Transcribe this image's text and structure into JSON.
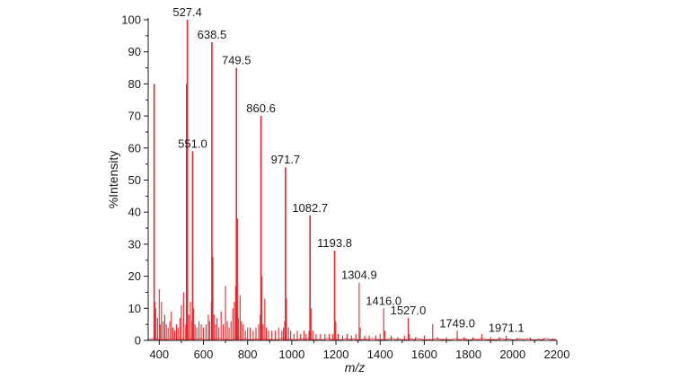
{
  "chart_data": {
    "type": "bar",
    "subtype": "mass-spectrum",
    "title": "",
    "xlabel": "m/z",
    "ylabel": "%Intensity",
    "xlim": [
      350,
      2200
    ],
    "ylim": [
      0,
      100
    ],
    "xticks": [
      400,
      600,
      800,
      1000,
      1200,
      1400,
      1600,
      1800,
      2000,
      2200
    ],
    "yticks": [
      0,
      10,
      20,
      30,
      40,
      50,
      60,
      70,
      80,
      90,
      100
    ],
    "grid": false,
    "color": "#e8262b",
    "labeled_peaks": [
      {
        "label": "527.4",
        "x": 527.4,
        "y": 100
      },
      {
        "label": "551.0",
        "x": 551.0,
        "y": 59
      },
      {
        "label": "638.5",
        "x": 638.5,
        "y": 93
      },
      {
        "label": "749.5",
        "x": 749.5,
        "y": 85
      },
      {
        "label": "860.6",
        "x": 860.6,
        "y": 70
      },
      {
        "label": "971.7",
        "x": 971.7,
        "y": 54
      },
      {
        "label": "1082.7",
        "x": 1082.7,
        "y": 39
      },
      {
        "label": "1193.8",
        "x": 1193.8,
        "y": 28
      },
      {
        "label": "1304.9",
        "x": 1304.9,
        "y": 18
      },
      {
        "label": "1416.0",
        "x": 1416.0,
        "y": 10
      },
      {
        "label": "1527.0",
        "x": 1527.0,
        "y": 7
      },
      {
        "label": "1749.0",
        "x": 1749.0,
        "y": 3
      },
      {
        "label": "1971.1",
        "x": 1971.1,
        "y": 1.5
      }
    ],
    "peaks": [
      [
        377,
        80
      ],
      [
        380,
        12
      ],
      [
        384,
        10
      ],
      [
        392,
        7
      ],
      [
        400,
        16
      ],
      [
        404,
        5
      ],
      [
        410,
        12
      ],
      [
        418,
        6
      ],
      [
        425,
        8
      ],
      [
        432,
        5
      ],
      [
        440,
        4
      ],
      [
        448,
        6
      ],
      [
        455,
        9
      ],
      [
        462,
        4
      ],
      [
        470,
        3
      ],
      [
        478,
        5
      ],
      [
        485,
        4
      ],
      [
        494,
        7
      ],
      [
        500,
        11
      ],
      [
        510,
        15
      ],
      [
        520,
        5
      ],
      [
        524,
        80
      ],
      [
        527.4,
        100
      ],
      [
        534,
        8
      ],
      [
        541,
        12
      ],
      [
        548,
        6
      ],
      [
        551,
        59
      ],
      [
        556,
        10
      ],
      [
        562,
        5
      ],
      [
        570,
        4
      ],
      [
        580,
        6
      ],
      [
        590,
        5
      ],
      [
        600,
        4
      ],
      [
        612,
        5
      ],
      [
        622,
        8
      ],
      [
        628,
        6
      ],
      [
        636,
        12
      ],
      [
        638.5,
        93
      ],
      [
        642,
        26
      ],
      [
        648,
        8
      ],
      [
        655,
        5
      ],
      [
        662,
        7
      ],
      [
        670,
        4
      ],
      [
        680,
        9
      ],
      [
        690,
        5
      ],
      [
        700,
        17
      ],
      [
        708,
        6
      ],
      [
        716,
        4
      ],
      [
        725,
        6
      ],
      [
        733,
        10
      ],
      [
        740,
        12
      ],
      [
        746,
        17
      ],
      [
        749.5,
        85
      ],
      [
        753,
        38
      ],
      [
        758,
        7
      ],
      [
        766,
        14
      ],
      [
        772,
        6
      ],
      [
        780,
        5
      ],
      [
        790,
        3
      ],
      [
        800,
        4
      ],
      [
        812,
        4
      ],
      [
        825,
        3
      ],
      [
        838,
        4
      ],
      [
        850,
        5
      ],
      [
        857,
        8
      ],
      [
        860.6,
        70
      ],
      [
        865,
        20
      ],
      [
        870,
        5
      ],
      [
        878,
        13
      ],
      [
        885,
        4
      ],
      [
        895,
        3
      ],
      [
        910,
        3
      ],
      [
        925,
        3
      ],
      [
        940,
        4
      ],
      [
        955,
        3
      ],
      [
        962,
        4
      ],
      [
        968,
        6
      ],
      [
        971.7,
        54
      ],
      [
        976,
        13
      ],
      [
        985,
        4
      ],
      [
        995,
        3
      ],
      [
        1010,
        2
      ],
      [
        1025,
        3
      ],
      [
        1040,
        2
      ],
      [
        1055,
        3
      ],
      [
        1065,
        2
      ],
      [
        1078,
        3
      ],
      [
        1082.7,
        39
      ],
      [
        1087,
        10
      ],
      [
        1095,
        3
      ],
      [
        1110,
        2
      ],
      [
        1130,
        2
      ],
      [
        1150,
        2
      ],
      [
        1170,
        2
      ],
      [
        1185,
        2
      ],
      [
        1193.8,
        28
      ],
      [
        1199,
        6
      ],
      [
        1210,
        2
      ],
      [
        1230,
        1.5
      ],
      [
        1250,
        2
      ],
      [
        1270,
        1.5
      ],
      [
        1290,
        2
      ],
      [
        1304.9,
        18
      ],
      [
        1310,
        4
      ],
      [
        1330,
        1.5
      ],
      [
        1350,
        1.5
      ],
      [
        1380,
        1.5
      ],
      [
        1400,
        2
      ],
      [
        1416.0,
        10
      ],
      [
        1421,
        3
      ],
      [
        1450,
        1.5
      ],
      [
        1480,
        1
      ],
      [
        1510,
        1.5
      ],
      [
        1527.0,
        7
      ],
      [
        1532,
        2
      ],
      [
        1560,
        1
      ],
      [
        1600,
        1.5
      ],
      [
        1638,
        5
      ],
      [
        1660,
        1
      ],
      [
        1700,
        1
      ],
      [
        1749.0,
        3
      ],
      [
        1780,
        1
      ],
      [
        1820,
        1
      ],
      [
        1860,
        2
      ],
      [
        1900,
        1
      ],
      [
        1940,
        1
      ],
      [
        1971.1,
        1.5
      ],
      [
        2020,
        0.8
      ],
      [
        2080,
        0.8
      ],
      [
        2140,
        0.7
      ],
      [
        2180,
        0.6
      ]
    ]
  }
}
